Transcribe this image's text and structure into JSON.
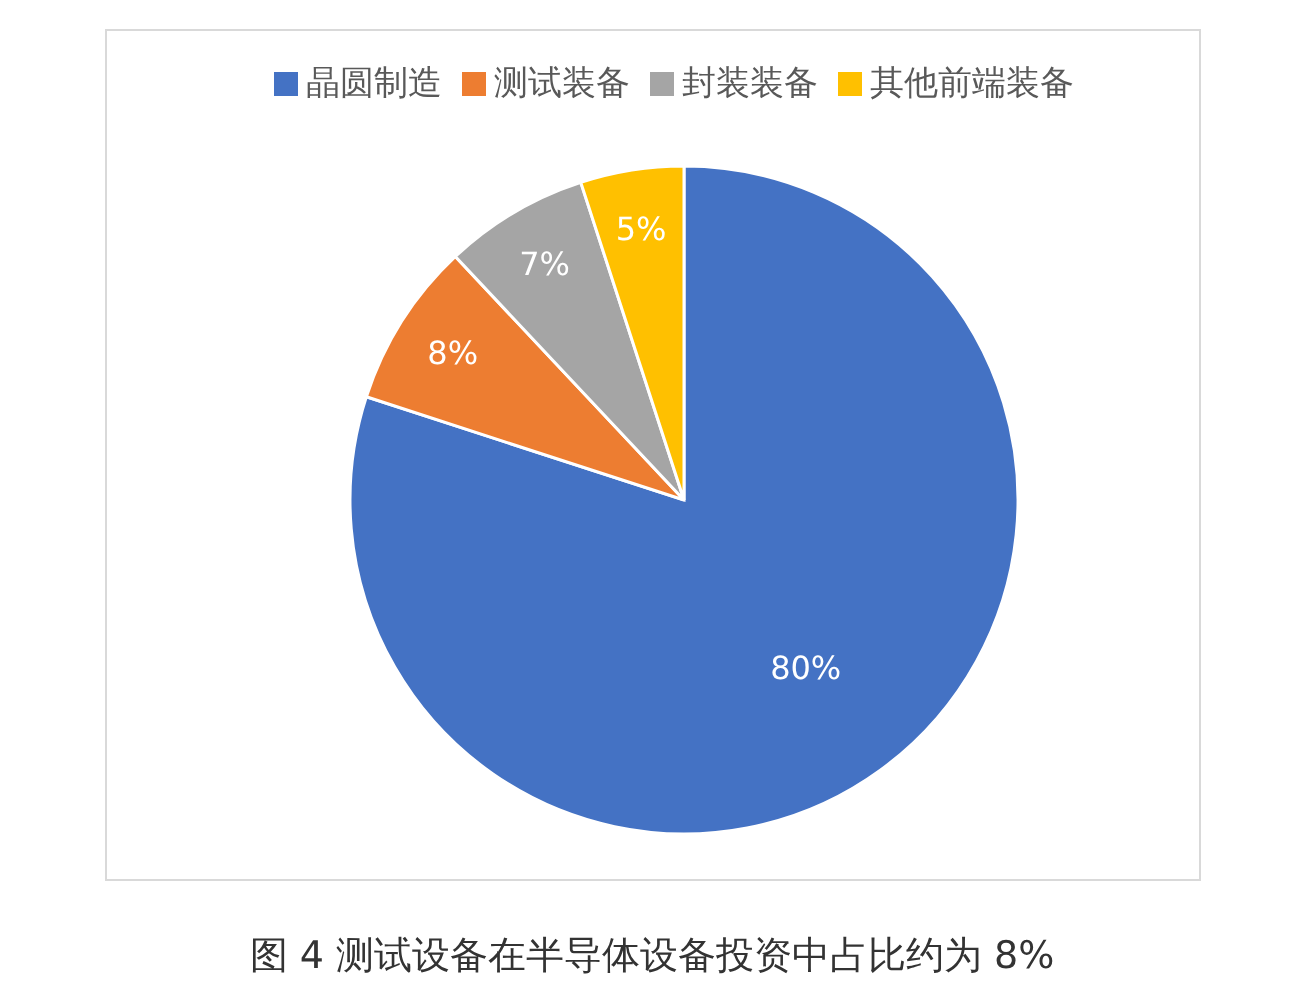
{
  "chart_data": {
    "type": "pie",
    "categories": [
      "晶圆制造",
      "测试装备",
      "封装装备",
      "其他前端装备"
    ],
    "values": [
      80,
      8,
      7,
      5
    ],
    "colors": [
      "#4472c4",
      "#ed7d31",
      "#a5a5a5",
      "#ffc000"
    ],
    "value_labels": [
      "80%",
      "8%",
      "7%",
      "5%"
    ],
    "legend": "top",
    "annotations": [
      "图 4 测试设备在半导体设备投资中占比约为 8%"
    ]
  }
}
